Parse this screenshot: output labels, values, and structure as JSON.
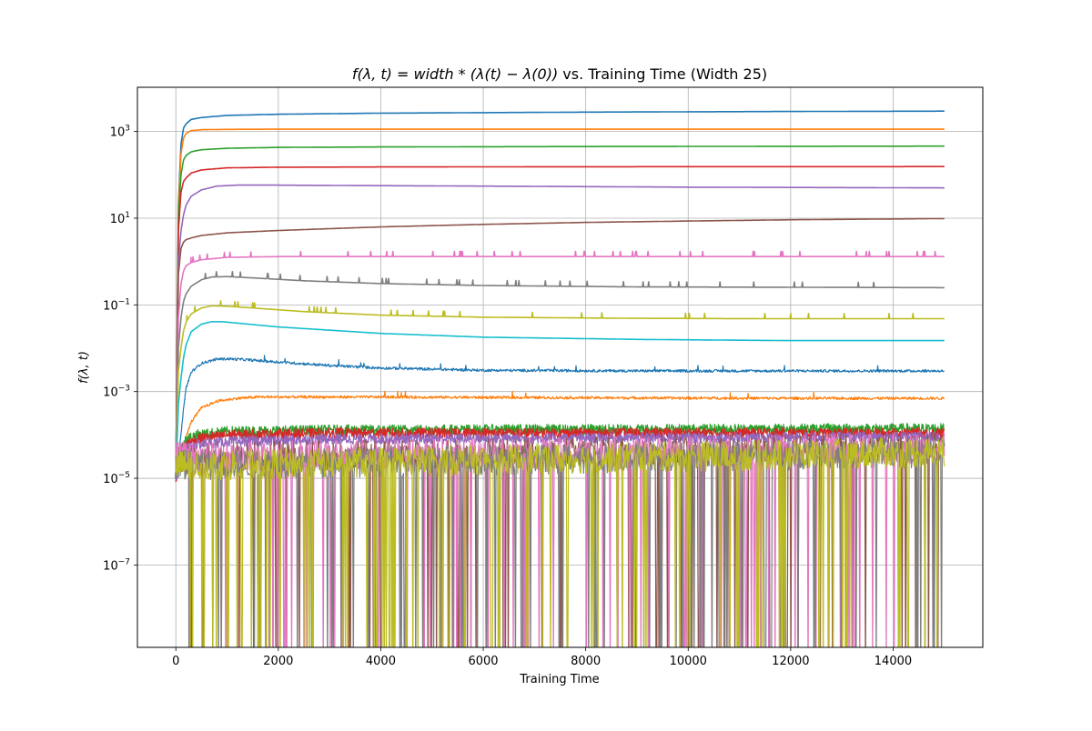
{
  "chart_data": {
    "type": "line",
    "title": "f(λ, t) = width * (λ(t) − λ(0)) vs. Training Time (Width 25)",
    "title_parts": {
      "math": "f(λ, t) = width * (λ(t) − λ(0))",
      "rest": " vs. Training Time (Width 25)"
    },
    "xlabel": "Training Time",
    "ylabel": "f(λ, t)",
    "xlim": [
      -750,
      15750
    ],
    "ylim_log10": [
      -8.9,
      4.02
    ],
    "y_scale": "log",
    "grid": true,
    "x_ticks": [
      0,
      2000,
      4000,
      6000,
      8000,
      10000,
      12000,
      14000
    ],
    "x_tick_labels": [
      "0",
      "2000",
      "4000",
      "6000",
      "8000",
      "10000",
      "12000",
      "14000"
    ],
    "y_ticks_log10": [
      3,
      1,
      -1,
      -3,
      -5,
      -7
    ],
    "y_tick_labels": [
      {
        "base": "10",
        "exp": "3"
      },
      {
        "base": "10",
        "exp": "1"
      },
      {
        "base": "10",
        "exp": "−1"
      },
      {
        "base": "10",
        "exp": "−3"
      },
      {
        "base": "10",
        "exp": "−5"
      },
      {
        "base": "10",
        "exp": "−7"
      }
    ],
    "series": [
      {
        "color": "#1f77b4",
        "kind": "smooth",
        "x": [
          0,
          50,
          100,
          150,
          200,
          300,
          500,
          1000,
          2000,
          4000,
          8000,
          12000,
          15000
        ],
        "y": [
          1e-05,
          20,
          500,
          1200,
          1500,
          1900,
          2100,
          2350,
          2500,
          2650,
          2800,
          2900,
          2950
        ]
      },
      {
        "color": "#ff7f0e",
        "kind": "smooth",
        "x": [
          0,
          50,
          100,
          150,
          200,
          300,
          500,
          1000,
          2000,
          4000,
          8000,
          15000
        ],
        "y": [
          1e-05,
          15,
          300,
          700,
          900,
          1050,
          1100,
          1120,
          1130,
          1130,
          1130,
          1130
        ]
      },
      {
        "color": "#2ca02c",
        "kind": "smooth",
        "x": [
          0,
          50,
          100,
          150,
          200,
          300,
          500,
          1000,
          2000,
          4000,
          8000,
          15000
        ],
        "y": [
          1e-05,
          10,
          100,
          220,
          280,
          340,
          380,
          410,
          430,
          440,
          450,
          460
        ]
      },
      {
        "color": "#d62728",
        "kind": "smooth",
        "x": [
          0,
          50,
          100,
          150,
          200,
          300,
          500,
          1000,
          2000,
          4000,
          8000,
          15000
        ],
        "y": [
          1e-05,
          5,
          40,
          70,
          85,
          110,
          130,
          145,
          150,
          152,
          154,
          155
        ]
      },
      {
        "color": "#9467bd",
        "kind": "smooth",
        "x": [
          0,
          50,
          100,
          150,
          200,
          300,
          500,
          800,
          1200,
          1800,
          3000,
          6000,
          10000,
          15000
        ],
        "y": [
          1e-05,
          1,
          5,
          12,
          20,
          32,
          45,
          55,
          58,
          58,
          57,
          55,
          52,
          50
        ]
      },
      {
        "color": "#8c564b",
        "kind": "smooth",
        "x": [
          0,
          50,
          100,
          150,
          200,
          300,
          500,
          1000,
          2000,
          4000,
          6000,
          8000,
          10000,
          12000,
          15000
        ],
        "y": [
          1e-05,
          0.5,
          2,
          2.8,
          3.2,
          3.5,
          4,
          4.6,
          5.2,
          6.3,
          7.2,
          8,
          8.6,
          9.2,
          9.8
        ]
      },
      {
        "color": "#e377c2",
        "kind": "spiky",
        "x": [
          0,
          50,
          100,
          150,
          200,
          300,
          500,
          1000,
          2000,
          4000,
          8000,
          15000
        ],
        "y": [
          1e-05,
          0.05,
          0.3,
          0.6,
          0.8,
          0.95,
          1.1,
          1.25,
          1.3,
          1.3,
          1.3,
          1.3
        ]
      },
      {
        "color": "#7f7f7f",
        "kind": "spiky",
        "x": [
          0,
          50,
          100,
          150,
          200,
          300,
          500,
          700,
          1000,
          1500,
          2500,
          4000,
          6000,
          9000,
          12000,
          15000
        ],
        "y": [
          1e-05,
          0.01,
          0.05,
          0.12,
          0.18,
          0.27,
          0.38,
          0.44,
          0.45,
          0.42,
          0.36,
          0.31,
          0.28,
          0.26,
          0.255,
          0.25
        ]
      },
      {
        "color": "#bcbd22",
        "kind": "spiky",
        "x": [
          0,
          50,
          100,
          150,
          200,
          300,
          500,
          700,
          1000,
          1500,
          2500,
          4000,
          6000,
          9000,
          12000,
          15000
        ],
        "y": [
          1e-05,
          0.003,
          0.01,
          0.025,
          0.04,
          0.062,
          0.085,
          0.095,
          0.093,
          0.085,
          0.07,
          0.058,
          0.052,
          0.049,
          0.048,
          0.048
        ]
      },
      {
        "color": "#17becf",
        "kind": "smooth",
        "x": [
          0,
          50,
          100,
          150,
          200,
          300,
          500,
          700,
          900,
          1200,
          2000,
          4000,
          6000,
          9000,
          12000,
          15000
        ],
        "y": [
          1e-05,
          0.0005,
          0.002,
          0.006,
          0.012,
          0.024,
          0.036,
          0.041,
          0.041,
          0.038,
          0.031,
          0.022,
          0.018,
          0.016,
          0.015,
          0.015
        ]
      },
      {
        "color": "#1f77b4",
        "kind": "noisy",
        "x": [
          0,
          50,
          100,
          150,
          200,
          300,
          500,
          800,
          1000,
          1300,
          2000,
          3000,
          4000,
          6000,
          9000,
          12000,
          15000
        ],
        "y": [
          1e-05,
          3e-05,
          0.0001,
          0.0004,
          0.0012,
          0.0028,
          0.0045,
          0.0056,
          0.0057,
          0.0055,
          0.0048,
          0.004,
          0.0035,
          0.0031,
          0.003,
          0.003,
          0.003
        ]
      },
      {
        "color": "#ff7f0e",
        "kind": "noisy",
        "x": [
          0,
          100,
          200,
          300,
          500,
          800,
          1200,
          1600,
          2000,
          4000,
          8000,
          12000,
          15000
        ],
        "y": [
          1e-05,
          2e-05,
          9e-05,
          0.0002,
          0.00042,
          0.0006,
          0.0007,
          0.00075,
          0.00075,
          0.00075,
          0.00072,
          0.0007,
          0.0007
        ]
      },
      {
        "color": "#2ca02c",
        "kind": "noise-band",
        "x": [
          0,
          100,
          200,
          400,
          1000,
          3000,
          15000
        ],
        "y": [
          1.2e-05,
          4e-05,
          8e-05,
          0.0001,
          0.00012,
          0.00013,
          0.00014
        ]
      },
      {
        "color": "#d62728",
        "kind": "noise-band",
        "x": [
          0,
          100,
          200,
          400,
          1000,
          3000,
          15000
        ],
        "y": [
          1e-05,
          3e-05,
          6e-05,
          8e-05,
          0.0001,
          0.00011,
          0.00011
        ]
      },
      {
        "color": "#9467bd",
        "kind": "noise-band",
        "x": [
          0,
          100,
          200,
          400,
          1000,
          3000,
          15000
        ],
        "y": [
          1e-05,
          3e-05,
          5e-05,
          6e-05,
          7e-05,
          8e-05,
          9e-05
        ]
      },
      {
        "color": "#8c564b",
        "kind": "noise-dense",
        "x": [
          0,
          15000
        ],
        "y": [
          3e-05,
          5e-05
        ]
      },
      {
        "color": "#e377c2",
        "kind": "noise-dense",
        "x": [
          0,
          15000
        ],
        "y": [
          3e-05,
          5e-05
        ]
      },
      {
        "color": "#7f7f7f",
        "kind": "noise-dense",
        "x": [
          0,
          15000
        ],
        "y": [
          2e-05,
          4e-05
        ]
      },
      {
        "color": "#bcbd22",
        "kind": "noise-dense",
        "x": [
          0,
          15000
        ],
        "y": [
          2e-05,
          4e-05
        ]
      }
    ]
  }
}
